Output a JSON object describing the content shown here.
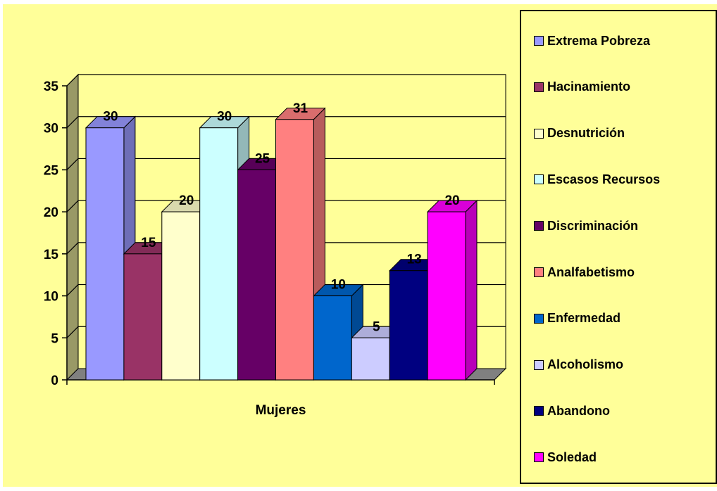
{
  "chart_data": {
    "type": "bar",
    "categories": [
      "Mujeres"
    ],
    "series": [
      {
        "name": "Extrema Pobreza",
        "values": [
          30
        ],
        "color": "#9999FF"
      },
      {
        "name": "Hacinamiento",
        "values": [
          15
        ],
        "color": "#993366"
      },
      {
        "name": "Desnutrición",
        "values": [
          20
        ],
        "color": "#FFFFCC"
      },
      {
        "name": "Escasos Recursos",
        "values": [
          30
        ],
        "color": "#CCFFFF"
      },
      {
        "name": "Discriminación",
        "values": [
          25
        ],
        "color": "#660066"
      },
      {
        "name": "Analfabetismo",
        "values": [
          31
        ],
        "color": "#FF8080"
      },
      {
        "name": "Enfermedad",
        "values": [
          10
        ],
        "color": "#0066CC"
      },
      {
        "name": "Alcoholismo",
        "values": [
          5
        ],
        "color": "#CCCCFF"
      },
      {
        "name": "Abandono",
        "values": [
          13
        ],
        "color": "#000080"
      },
      {
        "name": "Soledad",
        "values": [
          20
        ],
        "color": "#FF00FF"
      }
    ],
    "yticks": [
      "0",
      "5",
      "10",
      "15",
      "20",
      "25",
      "30",
      "35"
    ],
    "ylim": [
      0,
      35
    ],
    "grid": true,
    "legend_position": "right",
    "title": "",
    "xlabel": "",
    "ylabel": "",
    "colors": {
      "background": "#FFFF99",
      "wall": "#999966",
      "floor": "#808080"
    }
  }
}
